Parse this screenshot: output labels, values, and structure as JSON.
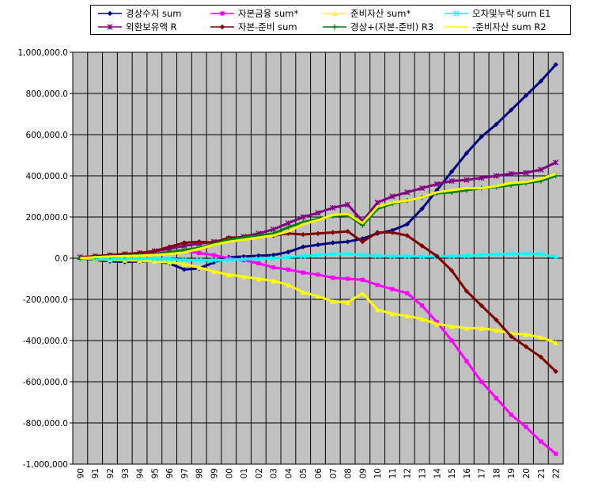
{
  "chart_data": {
    "type": "line",
    "title": "",
    "xlabel": "",
    "ylabel": "",
    "ylim": [
      -1000000,
      1000000
    ],
    "y_ticks": [
      "1,000,000.0",
      "800,000.0",
      "600,000.0",
      "400,000.0",
      "200,000.0",
      "0.0",
      "-200,000.0",
      "-400,000.0",
      "-600,000.0",
      "-800,000.0",
      "-1,000,000"
    ],
    "categories": [
      "90",
      "91",
      "92",
      "93",
      "94",
      "95",
      "96",
      "97",
      "98",
      "99",
      "00",
      "01",
      "02",
      "03",
      "04",
      "05",
      "06",
      "07",
      "08",
      "09",
      "10",
      "11",
      "12",
      "13",
      "14",
      "15",
      "16",
      "17",
      "18",
      "19",
      "20",
      "21",
      "22"
    ],
    "grid": true,
    "plot_background": "#c0c0c0",
    "legend_position": "top",
    "series": [
      {
        "name": "경상수지 sum",
        "color": "#000080",
        "marker": "diamond",
        "values": [
          0,
          -8000,
          -15000,
          -18000,
          -16000,
          -12000,
          -25000,
          -55000,
          -50000,
          -20000,
          5000,
          8000,
          12000,
          15000,
          30000,
          55000,
          65000,
          75000,
          80000,
          95000,
          120000,
          135000,
          165000,
          240000,
          330000,
          420000,
          510000,
          590000,
          650000,
          720000,
          790000,
          860000,
          940000
        ]
      },
      {
        "name": "자본금융 sum*",
        "color": "#ff00ff",
        "marker": "square",
        "values": [
          0,
          5000,
          12000,
          18000,
          22000,
          25000,
          30000,
          35000,
          25000,
          15000,
          0,
          -10000,
          -25000,
          -45000,
          -55000,
          -70000,
          -80000,
          -95000,
          -100000,
          -105000,
          -130000,
          -150000,
          -170000,
          -230000,
          -310000,
          -400000,
          -500000,
          -600000,
          -680000,
          -760000,
          -820000,
          -890000,
          -950000
        ]
      },
      {
        "name": "준비자산 sum*",
        "color": "#ffff00",
        "marker": "triangle",
        "values": [
          0,
          -5000,
          -8000,
          -10000,
          -12000,
          -15000,
          -20000,
          -28000,
          -45000,
          -65000,
          -80000,
          -90000,
          -100000,
          -110000,
          -130000,
          -165000,
          -185000,
          -210000,
          -215000,
          -170000,
          -250000,
          -270000,
          -280000,
          -295000,
          -320000,
          -330000,
          -340000,
          -340000,
          -350000,
          -365000,
          -370000,
          -385000,
          -410000
        ]
      },
      {
        "name": "오차및누락 sum E1",
        "color": "#00ffff",
        "marker": "x",
        "values": [
          0,
          -3000,
          -5000,
          -4000,
          -2000,
          -3000,
          -5000,
          -8000,
          -10000,
          -10000,
          -8000,
          -5000,
          -3000,
          0,
          5000,
          10000,
          15000,
          20000,
          20000,
          15000,
          12000,
          10000,
          10000,
          8000,
          8000,
          10000,
          12000,
          15000,
          18000,
          20000,
          22000,
          20000,
          5000
        ]
      },
      {
        "name": "외환보유액 R",
        "color": "#800080",
        "marker": "star",
        "values": [
          5000,
          10000,
          15000,
          20000,
          25000,
          35000,
          45000,
          60000,
          70000,
          80000,
          95000,
          105000,
          120000,
          140000,
          170000,
          200000,
          220000,
          245000,
          260000,
          180000,
          270000,
          300000,
          320000,
          340000,
          360000,
          375000,
          380000,
          390000,
          400000,
          410000,
          415000,
          430000,
          465000
        ]
      },
      {
        "name": "자본-준비 sum",
        "color": "#800000",
        "marker": "diamond",
        "values": [
          0,
          10000,
          15000,
          20000,
          25000,
          35000,
          55000,
          75000,
          80000,
          75000,
          100000,
          100000,
          105000,
          110000,
          120000,
          115000,
          120000,
          125000,
          130000,
          80000,
          125000,
          125000,
          110000,
          60000,
          10000,
          -60000,
          -160000,
          -230000,
          -300000,
          -380000,
          -430000,
          -480000,
          -550000
        ]
      },
      {
        "name": "경상+(자본-준비) R3",
        "color": "#008000",
        "marker": "plus",
        "values": [
          0,
          5000,
          8000,
          12000,
          15000,
          20000,
          30000,
          40000,
          50000,
          70000,
          90000,
          100000,
          110000,
          120000,
          150000,
          175000,
          190000,
          205000,
          210000,
          160000,
          240000,
          265000,
          280000,
          295000,
          315000,
          320000,
          330000,
          340000,
          345000,
          355000,
          365000,
          375000,
          400000
        ]
      },
      {
        "name": "-준비자산 sum R2",
        "color": "#ffff00",
        "marker": "none",
        "values": [
          0,
          5000,
          8000,
          10000,
          12000,
          15000,
          20000,
          28000,
          45000,
          65000,
          80000,
          90000,
          100000,
          110000,
          130000,
          165000,
          185000,
          210000,
          215000,
          170000,
          250000,
          270000,
          280000,
          295000,
          320000,
          330000,
          340000,
          340000,
          350000,
          365000,
          370000,
          385000,
          410000
        ]
      }
    ]
  }
}
